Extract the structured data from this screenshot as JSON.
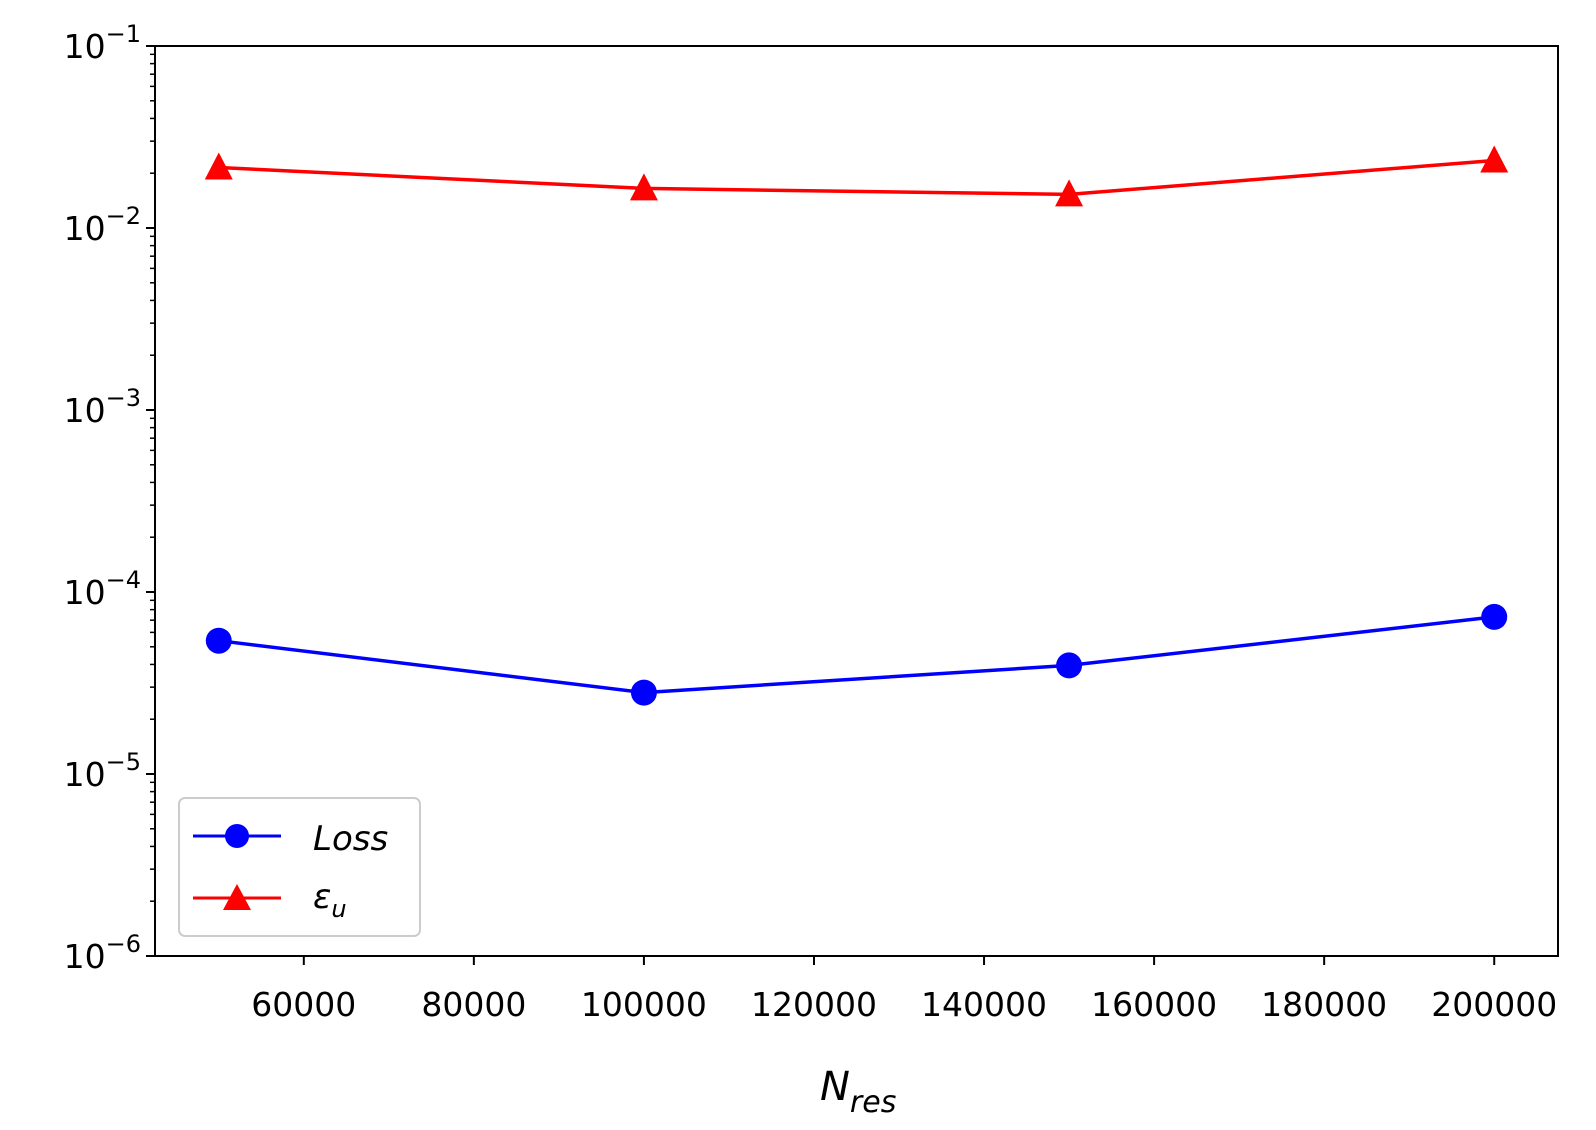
{
  "chart_data": {
    "type": "line",
    "title": "",
    "xlabel": {
      "base": "N",
      "sub": "res"
    },
    "ylabel": "",
    "x": [
      50000,
      100000,
      150000,
      200000
    ],
    "xlim": [
      42500,
      207500
    ],
    "xticks": [
      60000,
      80000,
      100000,
      120000,
      140000,
      160000,
      180000,
      200000
    ],
    "xtick_labels": [
      "60000",
      "80000",
      "100000",
      "120000",
      "140000",
      "160000",
      "180000",
      "200000"
    ],
    "yscale": "log",
    "ylim": [
      1e-06,
      0.1
    ],
    "yticks": [
      {
        "value": 1e-06,
        "base": "10",
        "exp": "−6"
      },
      {
        "value": 1e-05,
        "base": "10",
        "exp": "−5"
      },
      {
        "value": 0.0001,
        "base": "10",
        "exp": "−4"
      },
      {
        "value": 0.001,
        "base": "10",
        "exp": "−3"
      },
      {
        "value": 0.01,
        "base": "10",
        "exp": "−2"
      },
      {
        "value": 0.1,
        "base": "10",
        "exp": "−1"
      }
    ],
    "grid": false,
    "legend_position": "lower-left",
    "series": [
      {
        "name": "Loss",
        "label_base": "Loss",
        "label_sub": "",
        "color": "#0000ff",
        "marker": "circle",
        "values": [
          5.4e-05,
          2.8e-05,
          3.95e-05,
          7.3e-05
        ]
      },
      {
        "name": "ε_u",
        "label_base": "ε",
        "label_sub": "u",
        "color": "#ff0000",
        "marker": "triangle",
        "values": [
          0.0215,
          0.0165,
          0.0153,
          0.0235
        ]
      }
    ]
  }
}
